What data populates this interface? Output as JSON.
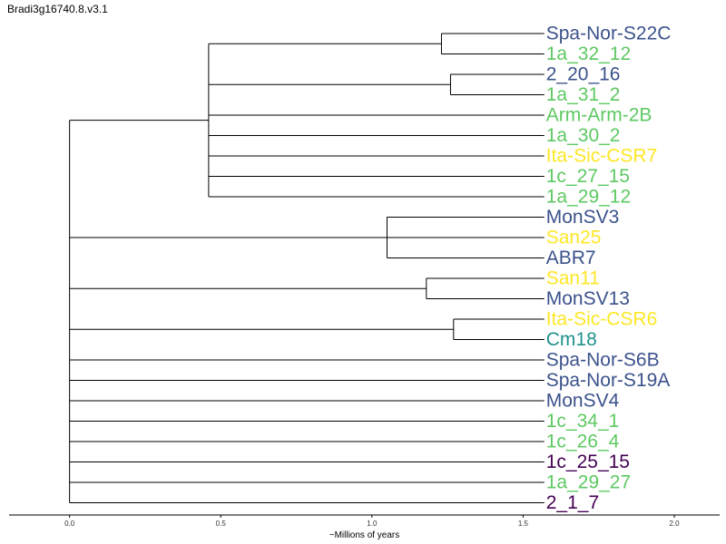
{
  "title": "Bradi3g16740.8.v3.1",
  "colors": {
    "dark_blue": "#3b528b",
    "green": "#5ec962",
    "yellow": "#fde725",
    "teal": "#21918c",
    "purple": "#440154",
    "line": "#000000"
  },
  "chart_data": {
    "type": "dendrogram",
    "xlabel": "~Millions of years",
    "xlim": [
      -0.2,
      2.15
    ],
    "xticks": [
      0.0,
      0.5,
      1.0,
      1.5,
      2.0
    ],
    "xtick_labels": [
      "0.0",
      "0.5",
      "1.0",
      "1.5",
      "2.0"
    ],
    "leaves": [
      {
        "label": "Spa-Nor-S22C",
        "color": "#3b528b",
        "x": 1.57
      },
      {
        "label": "1a_32_12",
        "color": "#5ec962",
        "x": 1.57
      },
      {
        "label": "2_20_16",
        "color": "#3b528b",
        "x": 1.57
      },
      {
        "label": "1a_31_2",
        "color": "#5ec962",
        "x": 1.57
      },
      {
        "label": "Arm-Arm-2B",
        "color": "#5ec962",
        "x": 1.57
      },
      {
        "label": "1a_30_2",
        "color": "#5ec962",
        "x": 1.57
      },
      {
        "label": "Ita-Sic-CSR7",
        "color": "#fde725",
        "x": 1.57
      },
      {
        "label": "1c_27_15",
        "color": "#5ec962",
        "x": 1.57
      },
      {
        "label": "1a_29_12",
        "color": "#5ec962",
        "x": 1.57
      },
      {
        "label": "MonSV3",
        "color": "#3b528b",
        "x": 1.57
      },
      {
        "label": "San25",
        "color": "#fde725",
        "x": 1.57
      },
      {
        "label": "ABR7",
        "color": "#3b528b",
        "x": 1.57
      },
      {
        "label": "San11",
        "color": "#fde725",
        "x": 1.57
      },
      {
        "label": "MonSV13",
        "color": "#3b528b",
        "x": 1.57
      },
      {
        "label": "Ita-Sic-CSR6",
        "color": "#fde725",
        "x": 1.57
      },
      {
        "label": "Cm18",
        "color": "#21918c",
        "x": 1.57
      },
      {
        "label": "Spa-Nor-S6B",
        "color": "#3b528b",
        "x": 1.57
      },
      {
        "label": "Spa-Nor-S19A",
        "color": "#3b528b",
        "x": 1.57
      },
      {
        "label": "MonSV4",
        "color": "#3b528b",
        "x": 1.57
      },
      {
        "label": "1c_34_1",
        "color": "#5ec962",
        "x": 1.57
      },
      {
        "label": "1c_26_4",
        "color": "#5ec962",
        "x": 1.57
      },
      {
        "label": "1c_25_15",
        "color": "#440154",
        "x": 1.57
      },
      {
        "label": "1a_29_27",
        "color": "#5ec962",
        "x": 1.57
      },
      {
        "label": "2_1_7",
        "color": "#440154",
        "x": 1.57
      }
    ],
    "clades": [
      {
        "name": "root",
        "x": 0.0,
        "children": [
          "cladeA",
          "cladeB",
          "cladeC",
          "cladeD",
          "Spa-Nor-S6B",
          "Spa-Nor-S19A",
          "MonSV4",
          "1c_34_1",
          "1c_26_4",
          "1c_25_15",
          "1a_29_27",
          "2_1_7"
        ]
      },
      {
        "name": "cladeA",
        "x": 0.46,
        "children": [
          "cladeA1",
          "cladeA2",
          "Arm-Arm-2B",
          "1a_30_2",
          "Ita-Sic-CSR7",
          "1c_27_15",
          "1a_29_12"
        ]
      },
      {
        "name": "cladeA1",
        "x": 1.23,
        "children": [
          "Spa-Nor-S22C",
          "1a_32_12"
        ]
      },
      {
        "name": "cladeA2",
        "x": 1.26,
        "children": [
          "2_20_16",
          "1a_31_2"
        ]
      },
      {
        "name": "cladeB",
        "x": 1.05,
        "children": [
          "MonSV3",
          "San25",
          "ABR7"
        ]
      },
      {
        "name": "cladeC",
        "x": 1.18,
        "children": [
          "San11",
          "MonSV13"
        ]
      },
      {
        "name": "cladeD",
        "x": 1.27,
        "children": [
          "Ita-Sic-CSR6",
          "Cm18"
        ]
      }
    ]
  }
}
